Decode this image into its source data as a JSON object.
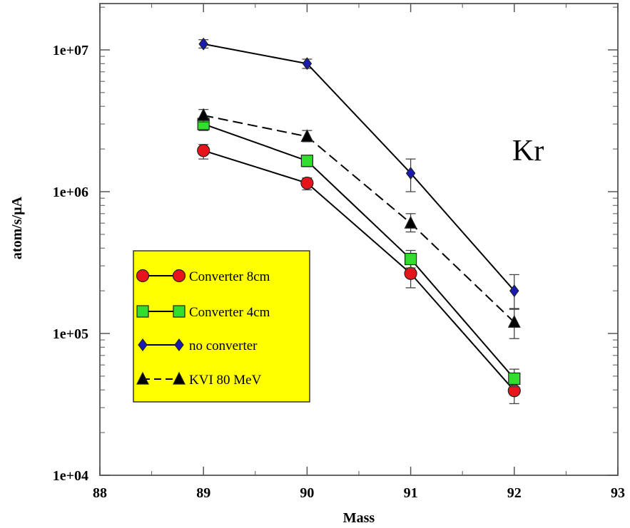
{
  "chart_data": {
    "type": "line",
    "title": "",
    "xlabel": "Mass",
    "ylabel": "atom/s/µA",
    "xlim": [
      88,
      93
    ],
    "ylim": [
      10000,
      20000000
    ],
    "yscale": "log",
    "grid": false,
    "legend_position": "lower-left",
    "x_ticks": [
      88,
      89,
      90,
      91,
      92,
      93
    ],
    "x_tick_labels": [
      "88",
      "89",
      "90",
      "91",
      "92",
      "93"
    ],
    "y_ticks": [
      10000,
      100000,
      1000000,
      10000000
    ],
    "y_tick_labels": [
      "1e+04",
      "1e+05",
      "1e+06",
      "1e+07"
    ],
    "annotations": [
      {
        "text": "Kr",
        "position": "upper-right"
      }
    ],
    "series": [
      {
        "name": "Converter 8cm",
        "color": "#e8141b",
        "marker": "circle",
        "line_style": "solid",
        "x": [
          89,
          90,
          91,
          92
        ],
        "y": [
          1950000,
          1150000,
          265000,
          39500
        ],
        "err_lo": [
          1700000,
          1030000,
          210000,
          32000
        ],
        "err_hi": [
          2150000,
          1250000,
          320000,
          46000
        ]
      },
      {
        "name": "Converter  4cm",
        "color": "#33dd2e",
        "marker": "square",
        "line_style": "solid",
        "x": [
          89,
          90,
          91,
          92
        ],
        "y": [
          3000000,
          1650000,
          335000,
          48000
        ],
        "err_lo": [
          2700000,
          1500000,
          290000,
          42000
        ],
        "err_hi": [
          3300000,
          1800000,
          385000,
          56000
        ]
      },
      {
        "name": "no converter",
        "color": "#1a1ab5",
        "marker": "diamond",
        "line_style": "solid",
        "x": [
          89,
          90,
          91,
          92
        ],
        "y": [
          11000000,
          8000000,
          1350000,
          200000
        ],
        "err_lo": [
          10300000,
          7400000,
          1000000,
          150000
        ],
        "err_hi": [
          11800000,
          8600000,
          1700000,
          260000
        ]
      },
      {
        "name": "KVI 80 MeV",
        "color": "#000000",
        "marker": "triangle",
        "line_style": "dashed",
        "x": [
          89,
          90,
          91,
          92
        ],
        "y": [
          3450000,
          2450000,
          600000,
          120000
        ],
        "err_lo": [
          3100000,
          2250000,
          520000,
          92000
        ],
        "err_hi": [
          3800000,
          2700000,
          700000,
          148000
        ]
      }
    ]
  }
}
